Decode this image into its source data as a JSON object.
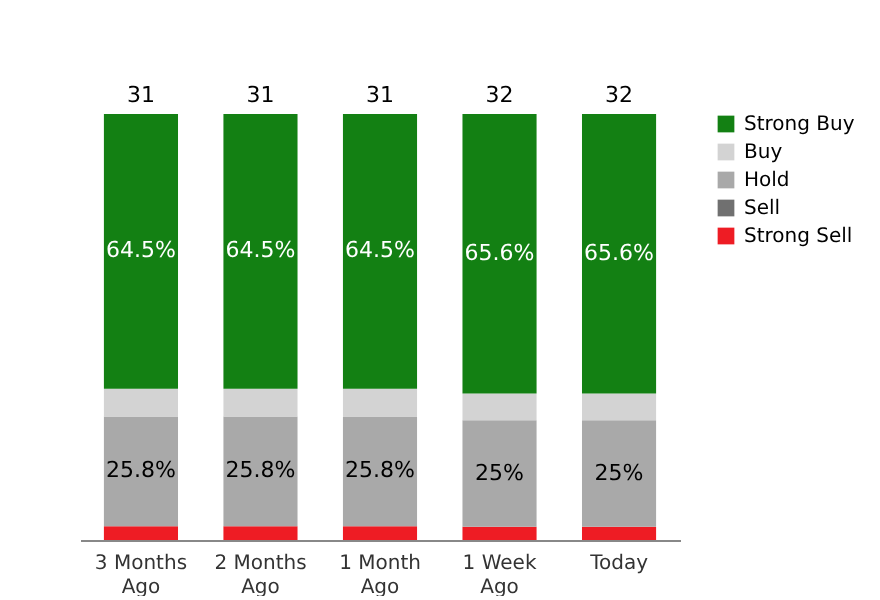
{
  "chart_data": {
    "type": "bar",
    "stacked": true,
    "legend": "right",
    "categories": [
      "3 Months Ago",
      "2 Months Ago",
      "1 Month Ago",
      "1 Week Ago",
      "Today"
    ],
    "series": [
      {
        "name": "Strong Sell",
        "color": "#ee1c24",
        "values": [
          3.2,
          3.2,
          3.2,
          3.1,
          3.1
        ]
      },
      {
        "name": "Sell",
        "color": "#707070",
        "values": [
          0,
          0,
          0,
          0,
          0
        ]
      },
      {
        "name": "Hold",
        "color": "#a9a9a9",
        "values": [
          25.8,
          25.8,
          25.8,
          25,
          25
        ],
        "value_labels": [
          "25.8%",
          "25.8%",
          "25.8%",
          "25%",
          "25%"
        ]
      },
      {
        "name": "Buy",
        "color": "#d3d3d3",
        "values": [
          6.5,
          6.5,
          6.5,
          6.3,
          6.3
        ]
      },
      {
        "name": "Strong Buy",
        "color": "#138013",
        "values": [
          64.5,
          64.5,
          64.5,
          65.6,
          65.6
        ],
        "value_labels": [
          "64.5%",
          "64.5%",
          "64.5%",
          "65.6%",
          "65.6%"
        ]
      }
    ],
    "annotations": [
      {
        "text": "31",
        "x": "3 Months Ago",
        "y": 100
      },
      {
        "text": "31",
        "x": "2 Months Ago",
        "y": 100
      },
      {
        "text": "31",
        "x": "1 Month Ago",
        "y": 100
      },
      {
        "text": "32",
        "x": "1 Week Ago",
        "y": 100
      },
      {
        "text": "32",
        "x": "Today",
        "y": 100
      }
    ]
  }
}
